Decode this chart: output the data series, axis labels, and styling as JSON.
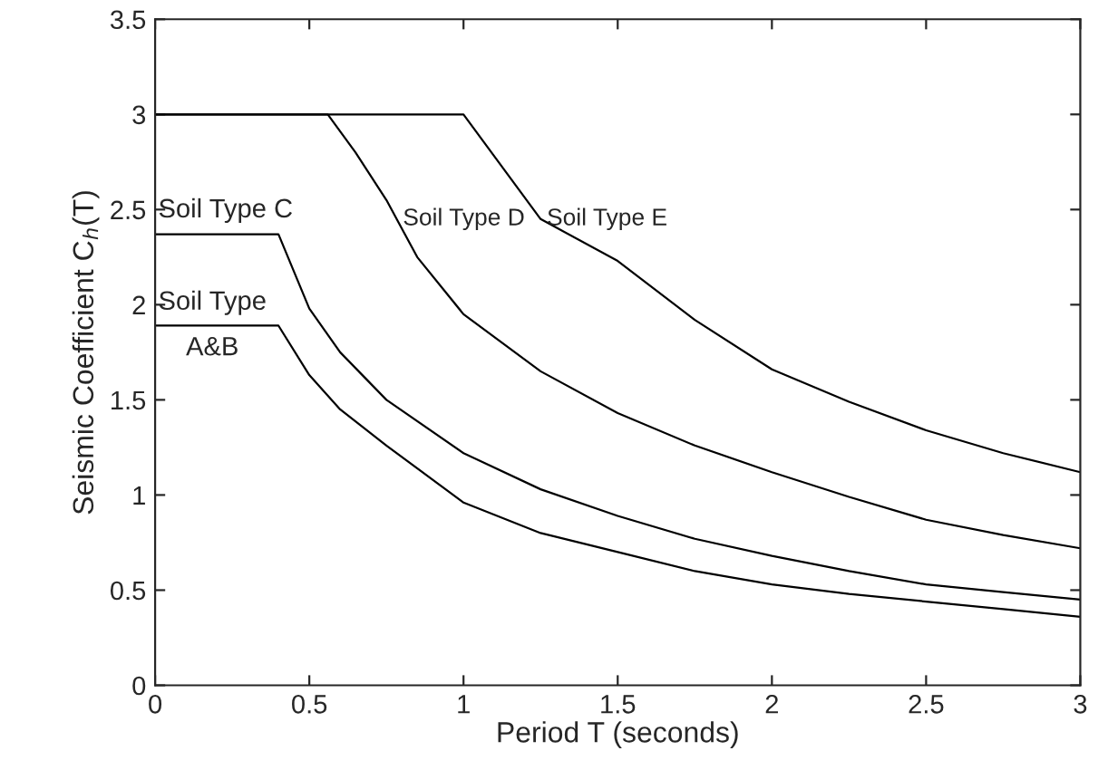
{
  "chart_data": {
    "type": "line",
    "xlabel": "Period T (seconds)",
    "ylabel": "Seismic Coefficient C$_{h}$(T)",
    "series": [
      {
        "name": "Soil Type\nA&B",
        "color": "#000000",
        "x": [
          0,
          0.4,
          0.5,
          0.6,
          0.75,
          1.0,
          1.25,
          1.5,
          1.75,
          2.0,
          2.25,
          2.5,
          2.75,
          3.0
        ],
        "values": [
          1.89,
          1.89,
          1.63,
          1.45,
          1.26,
          0.96,
          0.8,
          0.7,
          0.6,
          0.53,
          0.48,
          0.44,
          0.4,
          0.36
        ]
      },
      {
        "name": "Soil Type C",
        "color": "#000000",
        "x": [
          0,
          0.4,
          0.5,
          0.6,
          0.75,
          1.0,
          1.25,
          1.5,
          1.75,
          2.0,
          2.25,
          2.5,
          2.75,
          3.0
        ],
        "values": [
          2.37,
          2.37,
          1.98,
          1.75,
          1.5,
          1.22,
          1.03,
          0.89,
          0.77,
          0.68,
          0.6,
          0.53,
          0.49,
          0.45
        ]
      },
      {
        "name": "Soil Type D",
        "color": "#000000",
        "x": [
          0,
          0.56,
          0.65,
          0.75,
          0.85,
          1.0,
          1.25,
          1.5,
          1.75,
          2.0,
          2.25,
          2.5,
          2.75,
          3.0
        ],
        "values": [
          3,
          3,
          2.8,
          2.55,
          2.25,
          1.95,
          1.65,
          1.43,
          1.26,
          1.12,
          0.99,
          0.87,
          0.79,
          0.72
        ]
      },
      {
        "name": "Soil Type E",
        "color": "#000000",
        "x": [
          0,
          1.0,
          1.25,
          1.5,
          1.75,
          2.0,
          2.25,
          2.5,
          2.75,
          3.0
        ],
        "values": [
          3,
          3,
          2.45,
          2.23,
          1.92,
          1.66,
          1.49,
          1.34,
          1.22,
          1.12
        ]
      }
    ],
    "xlim": [
      0,
      3
    ],
    "ylim": [
      0,
      3.5
    ],
    "xticks": [
      0,
      0.5,
      1,
      1.5,
      2,
      2.5,
      3
    ],
    "yticks": [
      0,
      0.5,
      1,
      1.5,
      2,
      2.5,
      3,
      3.5
    ],
    "grid": false,
    "legend": false,
    "marker": "none",
    "line_style": "solid"
  }
}
